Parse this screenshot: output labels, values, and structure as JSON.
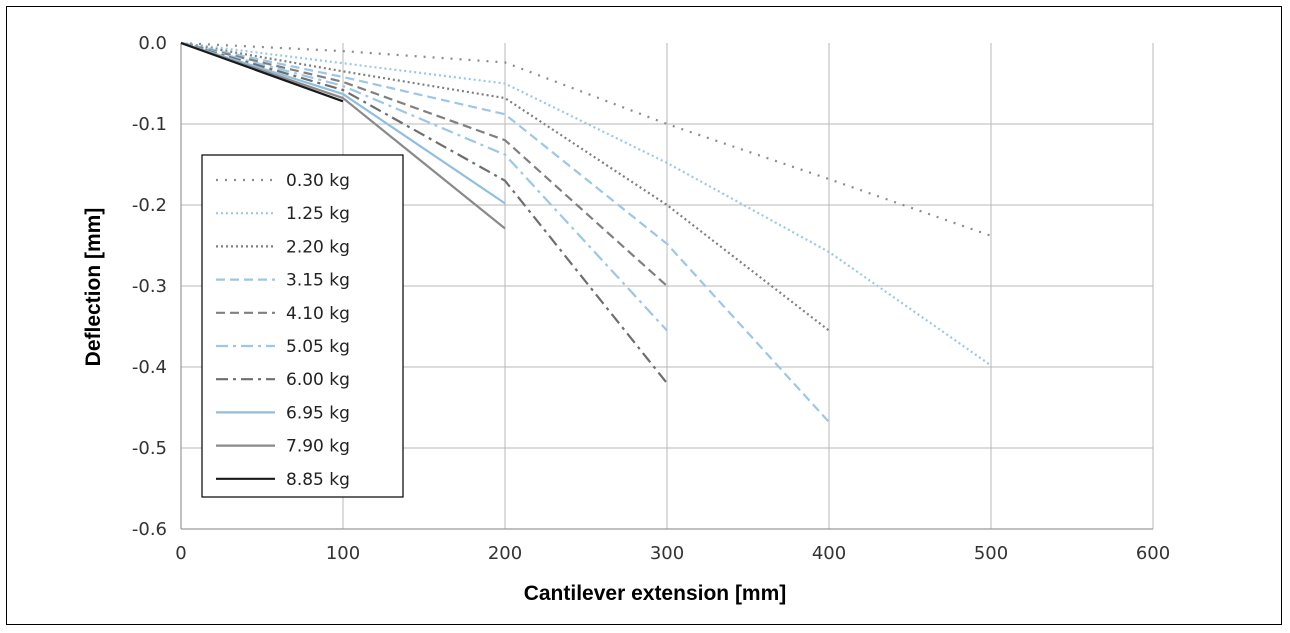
{
  "chart_data": {
    "type": "line",
    "title": "",
    "xlabel": "Cantilever extension [mm]",
    "ylabel": "Deflection [mm]",
    "xlim": [
      0,
      600
    ],
    "ylim": [
      -0.6,
      0.0
    ],
    "x_ticks": [
      "0",
      "100",
      "200",
      "300",
      "400",
      "500",
      "600"
    ],
    "y_ticks": [
      "0.0",
      "-0.1",
      "-0.2",
      "-0.3",
      "-0.4",
      "-0.5",
      "-0.6"
    ],
    "grid": true,
    "legend_position": "left",
    "series": [
      {
        "name": "0.30 kg",
        "x": [
          0,
          100,
          200,
          300,
          400,
          500
        ],
        "y": [
          0,
          -0.01,
          -0.024,
          -0.1,
          -0.168,
          -0.238
        ],
        "color": "#8c8c8c",
        "dash": "dot-sparse"
      },
      {
        "name": "1.25 kg",
        "x": [
          0,
          100,
          200,
          300,
          400,
          500
        ],
        "y": [
          0,
          -0.025,
          -0.05,
          -0.148,
          -0.258,
          -0.398
        ],
        "color": "#9cc7e6",
        "dash": "dot"
      },
      {
        "name": "2.20 kg",
        "x": [
          0,
          100,
          200,
          300,
          400
        ],
        "y": [
          0,
          -0.035,
          -0.068,
          -0.2,
          -0.355
        ],
        "color": "#7f7f7f",
        "dash": "dot"
      },
      {
        "name": "3.15 kg",
        "x": [
          0,
          100,
          200,
          300,
          400
        ],
        "y": [
          0,
          -0.042,
          -0.088,
          -0.248,
          -0.468
        ],
        "color": "#9cc7e6",
        "dash": "dash"
      },
      {
        "name": "4.10 kg",
        "x": [
          0,
          100,
          200,
          300
        ],
        "y": [
          0,
          -0.048,
          -0.12,
          -0.3
        ],
        "color": "#808080",
        "dash": "dash"
      },
      {
        "name": "5.05 kg",
        "x": [
          0,
          100,
          200,
          300
        ],
        "y": [
          0,
          -0.053,
          -0.138,
          -0.355
        ],
        "color": "#9cc7e6",
        "dash": "dashdot"
      },
      {
        "name": "6.00 kg",
        "x": [
          0,
          100,
          200,
          300
        ],
        "y": [
          0,
          -0.058,
          -0.17,
          -0.42
        ],
        "color": "#6e6e6e",
        "dash": "dashdot"
      },
      {
        "name": "6.95 kg",
        "x": [
          0,
          100,
          200
        ],
        "y": [
          0,
          -0.063,
          -0.198
        ],
        "color": "#8fbfe0",
        "dash": "solid"
      },
      {
        "name": "7.90 kg",
        "x": [
          0,
          100,
          200
        ],
        "y": [
          0,
          -0.068,
          -0.229
        ],
        "color": "#8a8a8a",
        "dash": "solid"
      },
      {
        "name": "8.85 kg",
        "x": [
          0,
          100
        ],
        "y": [
          0,
          -0.072
        ],
        "color": "#1a1a1a",
        "dash": "solid"
      }
    ]
  }
}
